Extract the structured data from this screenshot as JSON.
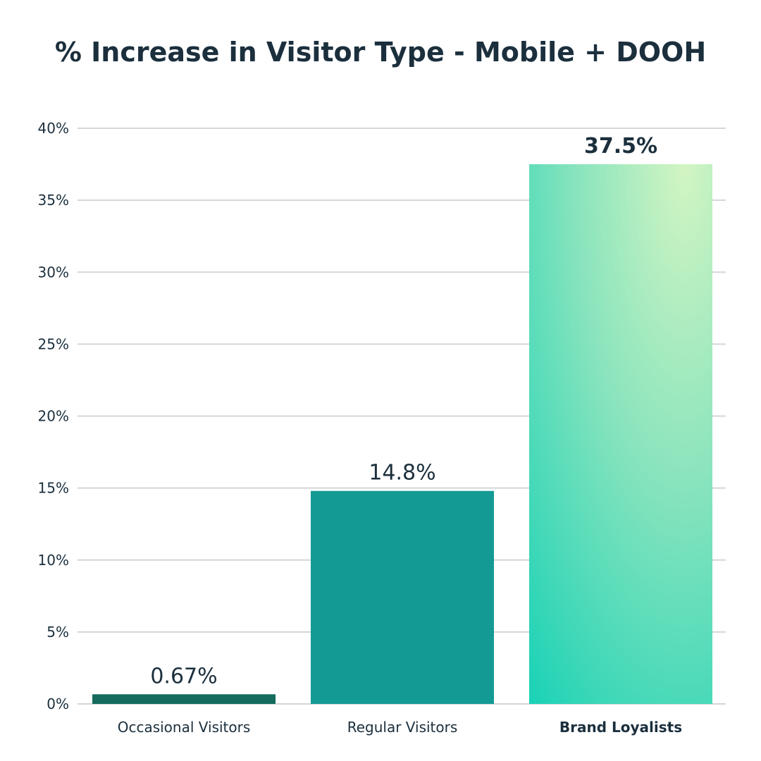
{
  "chart_data": {
    "type": "bar",
    "title": "% Increase in Visitor Type - Mobile + DOOH",
    "xlabel": "",
    "ylabel": "",
    "categories": [
      "Occasional Visitors",
      "Regular Visitors",
      "Brand Loyalists"
    ],
    "values": [
      0.67,
      14.8,
      37.5
    ],
    "data_labels": [
      "0.67%",
      "14.8%",
      "37.5%"
    ],
    "ylim": [
      0,
      40
    ],
    "yticks": [
      0,
      5,
      10,
      15,
      20,
      25,
      30,
      35,
      40
    ],
    "ytick_labels": [
      "0%",
      "5%",
      "10%",
      "15%",
      "20%",
      "25%",
      "30%",
      "35%",
      "40%"
    ],
    "grid": true,
    "legend": "none",
    "colors": [
      "#156b5d",
      "#149a94",
      "gradient:#1dd3b5-#d2f5c3"
    ],
    "highlighted_category": "Brand Loyalists"
  }
}
